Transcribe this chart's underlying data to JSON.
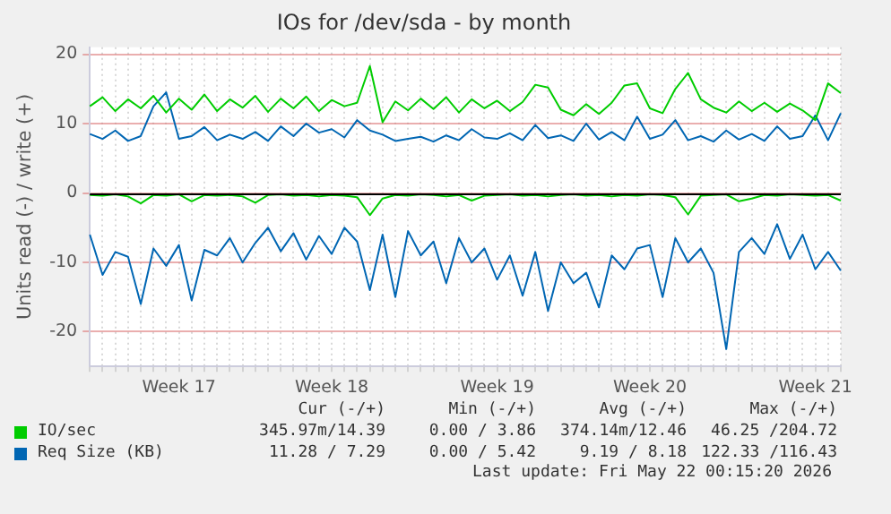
{
  "chart_data": {
    "type": "line",
    "title": "IOs for /dev/sda - by month",
    "ylabel": "Units read (-) / write (+)",
    "categories": [
      null,
      null,
      null,
      null,
      null,
      null,
      null,
      "Week 17",
      null,
      null,
      null,
      null,
      null,
      null,
      null,
      null,
      null,
      null,
      null,
      "Week 18",
      null,
      null,
      null,
      null,
      null,
      null,
      null,
      null,
      null,
      null,
      null,
      null,
      "Week 19",
      null,
      null,
      null,
      null,
      null,
      null,
      null,
      null,
      null,
      null,
      null,
      "Week 20",
      null,
      null,
      null,
      null,
      null,
      null,
      null,
      null,
      null,
      null,
      null,
      null,
      "Week 21",
      null,
      null
    ],
    "series": [
      {
        "name": "IO/sec",
        "color": "#00cc00",
        "values": [
          12.5,
          13.8,
          11.8,
          13.5,
          12.2,
          14,
          11.6,
          13.6,
          12,
          14.2,
          11.8,
          13.5,
          12.3,
          14,
          11.7,
          13.6,
          12.2,
          13.9,
          11.8,
          13.4,
          12.5,
          13,
          18.3,
          10.2,
          13.2,
          11.9,
          13.6,
          12.1,
          13.8,
          11.6,
          13.5,
          12.2,
          13.3,
          11.8,
          13.1,
          15.6,
          15.2,
          12,
          11.2,
          12.8,
          11.4,
          13,
          15.5,
          15.8,
          12.2,
          11.5,
          15,
          17.3,
          13.5,
          12.3,
          11.6,
          13.2,
          11.8,
          13,
          11.7,
          12.9,
          11.9,
          10.5,
          15.8,
          14.4
        ]
      },
      {
        "color": "#00cc00",
        "values": [
          -0.3,
          -0.4,
          -0.2,
          -0.5,
          -1.5,
          -0.3,
          -0.4,
          -0.2,
          -1.2,
          -0.3,
          -0.4,
          -0.3,
          -0.5,
          -1.4,
          -0.3,
          -0.2,
          -0.4,
          -0.3,
          -0.5,
          -0.3,
          -0.4,
          -0.6,
          -3.2,
          -0.8,
          -0.3,
          -0.4,
          -0.2,
          -0.3,
          -0.5,
          -0.3,
          -1.1,
          -0.4,
          -0.3,
          -0.2,
          -0.4,
          -0.3,
          -0.5,
          -0.3,
          -0.2,
          -0.4,
          -0.3,
          -0.5,
          -0.3,
          -0.4,
          -0.2,
          -0.3,
          -0.6,
          -3.1,
          -0.4,
          -0.3,
          -0.2,
          -1.2,
          -0.8,
          -0.3,
          -0.4,
          -0.2,
          -0.3,
          -0.4,
          -0.3,
          -1.1
        ]
      },
      {
        "name": "Req Size (KB)",
        "color": "#0066b3",
        "values": [
          8.5,
          7.8,
          9,
          7.5,
          8.2,
          12.5,
          14.5,
          7.8,
          8.2,
          9.5,
          7.6,
          8.4,
          7.8,
          8.8,
          7.5,
          9.6,
          8.2,
          10,
          8.7,
          9.2,
          8,
          10.5,
          9,
          8.4,
          7.5,
          7.8,
          8.1,
          7.4,
          8.3,
          7.6,
          9.2,
          8,
          7.8,
          8.6,
          7.6,
          9.8,
          7.9,
          8.3,
          7.5,
          10,
          7.7,
          8.8,
          7.6,
          11,
          7.8,
          8.4,
          10.5,
          7.6,
          8.2,
          7.4,
          9,
          7.7,
          8.5,
          7.5,
          9.6,
          7.8,
          8.2,
          11.2,
          7.6,
          11.5
        ]
      },
      {
        "color": "#0066b3",
        "values": [
          -6,
          -11.8,
          -8.5,
          -9.2,
          -16,
          -8,
          -10.5,
          -7.5,
          -15.5,
          -8.2,
          -9,
          -6.5,
          -10,
          -7.2,
          -5,
          -8.4,
          -5.8,
          -9.6,
          -6.2,
          -8.8,
          -5,
          -7,
          -14,
          -6,
          -15,
          -5.5,
          -9,
          -7,
          -13,
          -6.5,
          -10,
          -8,
          -12.5,
          -9,
          -14.8,
          -8.5,
          -17,
          -10,
          -13,
          -11.5,
          -16.5,
          -9,
          -11,
          -8,
          -7.5,
          -15,
          -6.5,
          -10,
          -8,
          -11.5,
          -22.5,
          -8.5,
          -6.5,
          -8.8,
          -4.5,
          -9.5,
          -6,
          -11,
          -8.5,
          -11.2
        ]
      }
    ],
    "ylim": [
      -25,
      21
    ],
    "yticks": [
      -20,
      -10,
      0,
      10,
      20
    ],
    "grid": true,
    "legend": "bottom",
    "line_style": "solid",
    "marker": "none",
    "annotations": [
      "Cur (-/+)",
      "Min (-/+)",
      "Avg (-/+)",
      "Max (-/+)",
      "345.97m/14.39",
      "0.00 / 3.86",
      "374.14m/12.46",
      "46.25 /204.72",
      "11.28 / 7.29",
      "0.00 / 5.42",
      "9.19 / 8.18",
      "122.33 /116.43",
      "Last update: Fri May 22 00:15:20 2026"
    ]
  }
}
